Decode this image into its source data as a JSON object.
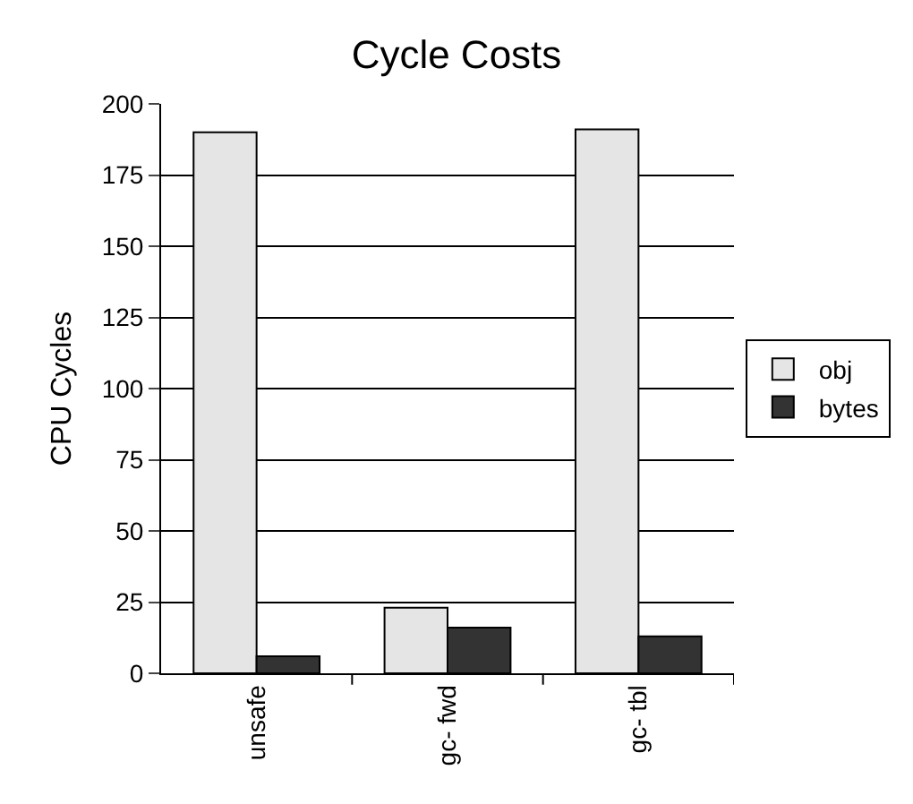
{
  "chart_data": {
    "type": "bar",
    "title": "Cycle Costs",
    "ylabel": "CPU Cycles",
    "categories": [
      "unsafe",
      "gc- fwd",
      "gc- tbl"
    ],
    "series": [
      {
        "name": "obj",
        "color": "#e5e5e5",
        "values": [
          190,
          23,
          191
        ]
      },
      {
        "name": "bytes",
        "color": "#333333",
        "values": [
          6,
          16,
          13
        ]
      }
    ],
    "ylim": [
      0,
      200
    ],
    "yticks": [
      0,
      25,
      50,
      75,
      100,
      125,
      150,
      175,
      200
    ],
    "grid": "y",
    "legend": "right"
  }
}
